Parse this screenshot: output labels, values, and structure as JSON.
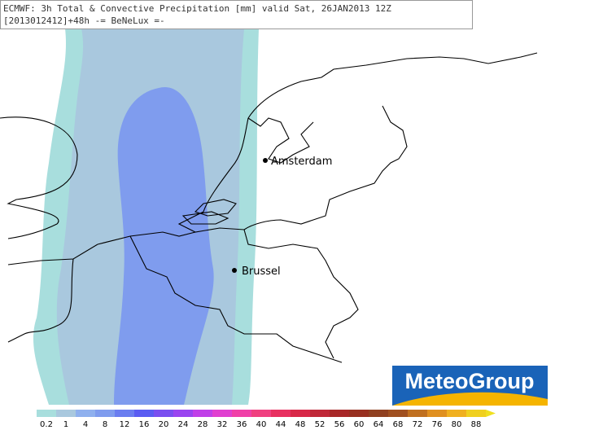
{
  "header": {
    "title": "ECMWF: 3h Total & Convective Precipitation [mm] valid Sat, 26JAN2013 12Z",
    "subtitle": "[2013012412]+48h -= BeNeLux =-"
  },
  "map": {
    "cities": [
      {
        "label": "Amsterdam"
      },
      {
        "label": "Brussel"
      }
    ]
  },
  "legend": {
    "labels": [
      "0.2",
      "1",
      "4",
      "8",
      "12",
      "16",
      "20",
      "24",
      "28",
      "32",
      "36",
      "40",
      "44",
      "48",
      "52",
      "56",
      "60",
      "64",
      "68",
      "72",
      "76",
      "80",
      "88"
    ]
  },
  "logo": {
    "text": "MeteoGroup"
  }
}
